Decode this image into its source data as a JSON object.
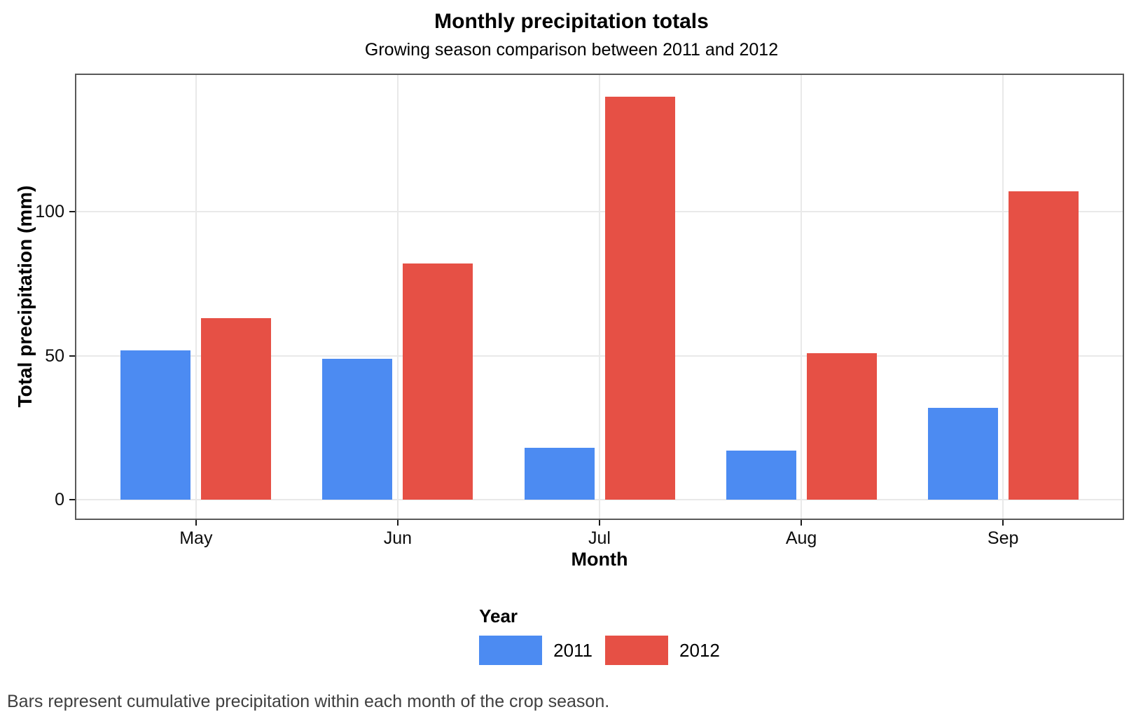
{
  "chart_data": {
    "type": "bar",
    "title": "Monthly precipitation totals",
    "subtitle": "Growing season comparison between 2011 and 2012",
    "categories": [
      "May",
      "Jun",
      "Jul",
      "Aug",
      "Sep"
    ],
    "series": [
      {
        "name": "2011",
        "color": "#4C8BF2",
        "values": [
          52,
          49,
          18,
          17,
          32
        ]
      },
      {
        "name": "2012",
        "color": "#E65045",
        "values": [
          63,
          82,
          140,
          51,
          107
        ]
      }
    ],
    "xlabel": "Month",
    "ylabel": "Total precipitation (mm)",
    "yticks": [
      0,
      50,
      100
    ],
    "ylim": [
      -7,
      148
    ],
    "legend_title": "Year",
    "legend_position": "bottom",
    "grid": "major",
    "caption": "Bars represent cumulative precipitation within each month of the crop season.",
    "colors": {
      "grid": "#E9E9E9",
      "panel_border": "#595959",
      "axis_text": "#0D0D0D",
      "tick_mark": "#1A1A1A",
      "caption_text": "#3F3F3F",
      "background": "#FFFFFF"
    }
  }
}
